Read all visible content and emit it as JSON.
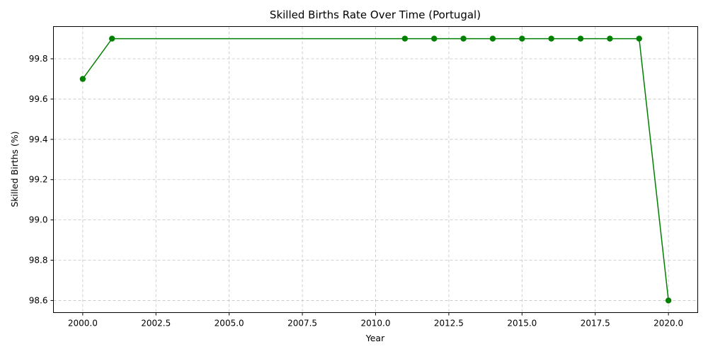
{
  "chart_data": {
    "type": "line",
    "title": "Skilled Births Rate Over Time (Portugal)",
    "xlabel": "Year",
    "ylabel": "Skilled Births (%)",
    "xlim": [
      1999,
      2021
    ],
    "ylim": [
      98.54,
      99.96
    ],
    "xticks": [
      2000.0,
      2002.5,
      2005.0,
      2007.5,
      2010.0,
      2012.5,
      2015.0,
      2017.5,
      2020.0
    ],
    "xtick_labels": [
      "2000.0",
      "2002.5",
      "2005.0",
      "2007.5",
      "2010.0",
      "2012.5",
      "2015.0",
      "2017.5",
      "2020.0"
    ],
    "yticks": [
      98.6,
      98.8,
      99.0,
      99.2,
      99.4,
      99.6,
      99.8
    ],
    "ytick_labels": [
      "98.6",
      "98.8",
      "99.0",
      "99.2",
      "99.4",
      "99.6",
      "99.8"
    ],
    "grid": true,
    "series": [
      {
        "color": "#008000",
        "marker": "circle",
        "x": [
          2000,
          2001,
          2011,
          2012,
          2013,
          2014,
          2015,
          2016,
          2017,
          2018,
          2019,
          2020
        ],
        "y": [
          99.7,
          99.9,
          99.9,
          99.9,
          99.9,
          99.9,
          99.9,
          99.9,
          99.9,
          99.9,
          99.9,
          98.6
        ]
      }
    ]
  }
}
